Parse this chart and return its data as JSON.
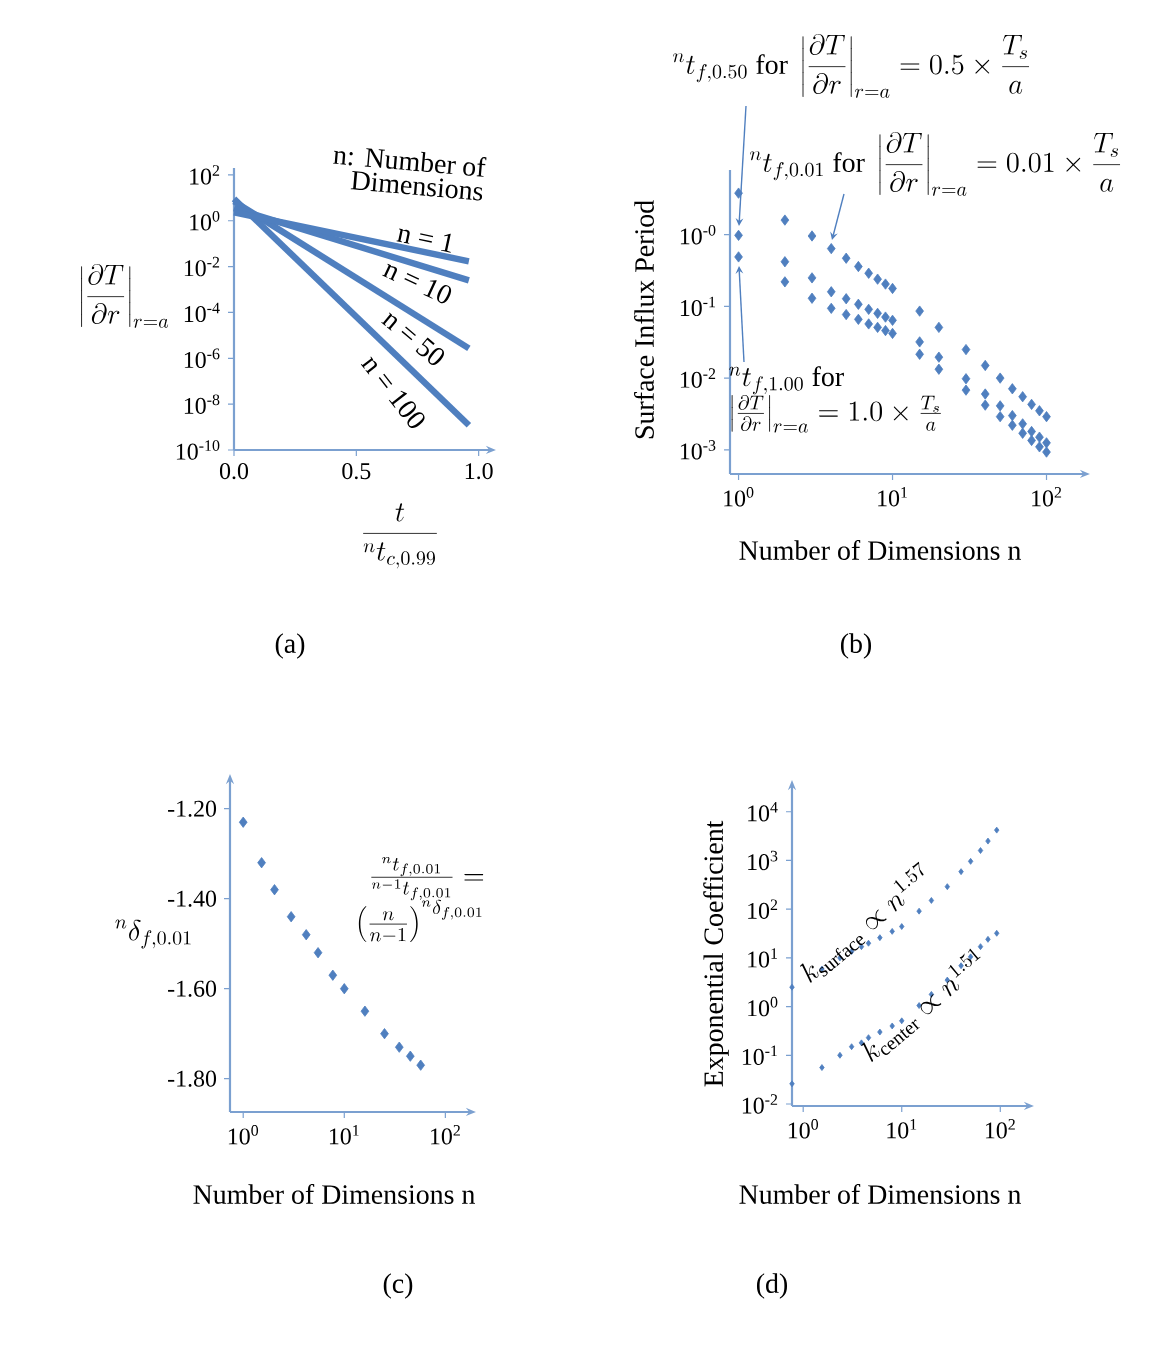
{
  "chart_data": [
    {
      "type": "line",
      "log": "y",
      "xlim": [
        0,
        1.03
      ],
      "ylim": [
        1e-10,
        200
      ],
      "xticks": [
        {
          "value": 0,
          "label": "0.0"
        },
        {
          "value": 0.5,
          "label": "0.5"
        },
        {
          "value": 1,
          "label": "1.0"
        }
      ],
      "yticks": [
        {
          "value": 100,
          "label": "10$^{2}$"
        },
        {
          "value": 1,
          "label": "10$^{0}$"
        },
        {
          "value": 0.01,
          "label": "10$^{-2}$"
        },
        {
          "value": 0.0001,
          "label": "10$^{-4}$"
        },
        {
          "value": 1e-06,
          "label": "10$^{-6}$"
        },
        {
          "value": 1e-08,
          "label": "10$^{-8}$"
        },
        {
          "value": 1e-10,
          "label": "10$^{-10}$"
        }
      ],
      "xlabel": "\\frac{t}{{}^{n}t_{c,0.99}}",
      "ylabel": "\\left|\\frac{\\partial T}{\\partial r}\\right|_{r=a}",
      "annotations": [
        "n: Number of Dimensions",
        "(a)"
      ],
      "x": [
        0,
        0.96
      ],
      "series": [
        {
          "name": "n = 1",
          "color": "#4f7fbf",
          "values": [
            2.3,
            0.017
          ]
        },
        {
          "name": "n = 10",
          "color": "#4f7fbf",
          "values": [
            3.5,
            0.0025
          ]
        },
        {
          "name": "n = 50",
          "color": "#4f7fbf",
          "values": [
            7,
            2.7e-06
          ]
        },
        {
          "name": "n = 100",
          "color": "#4f7fbf",
          "values": [
            9,
            1.2e-09
          ]
        }
      ]
    },
    {
      "type": "scatter",
      "log": "xy",
      "marker": "diamond",
      "xlim": [
        0.88,
        165
      ],
      "ylim": [
        0.00046,
        8
      ],
      "xticks": [
        {
          "value": 1,
          "label": "10$^{0}$"
        },
        {
          "value": 10,
          "label": "10$^{1}$"
        },
        {
          "value": 100,
          "label": "10$^{2}$"
        }
      ],
      "yticks": [
        {
          "value": 1,
          "label": "10$^{-0}$"
        },
        {
          "value": 0.1,
          "label": "10$^{-1}$"
        },
        {
          "value": 0.01,
          "label": "10$^{-2}$"
        },
        {
          "value": 0.001,
          "label": "10$^{-3}$"
        }
      ],
      "xlabel": "Number of Dimensions n",
      "ylabel": "Surface Influx Period",
      "annotations": [
        "{}^{n}t_{f,0.50}\\ \\mathrm{for}\\ \\left|\\frac{\\partial T}{\\partial r}\\right|_{r=a}=0.5\\times\\frac{T_s}{a}",
        "{}^{n}t_{f,0.01}\\ \\mathrm{for}\\ \\left|\\frac{\\partial T}{\\partial r}\\right|_{r=a}=0.01\\times\\frac{T_s}{a}",
        "\\begin{array}{l}{}^{n}t_{f,1.00}\\ \\mathrm{for}\\\\ \\left|\\frac{\\partial T}{\\partial r}\\right|_{r=a}=1.0\\times\\frac{T_s}{a}\\end{array}",
        "(b)"
      ],
      "x": [
        1,
        2,
        3,
        4,
        5,
        6,
        7,
        8,
        9,
        10,
        15,
        20,
        30,
        40,
        50,
        60,
        70,
        80,
        90,
        100
      ],
      "series": [
        {
          "color": "#4f7fbf",
          "values": [
            3.8,
            1.6,
            0.96,
            0.64,
            0.47,
            0.36,
            0.29,
            0.24,
            0.205,
            0.178,
            0.086,
            0.051,
            0.025,
            0.015,
            0.01,
            0.0071,
            0.0055,
            0.0043,
            0.0035,
            0.0029
          ]
        },
        {
          "color": "#4f7fbf",
          "values": [
            0.98,
            0.42,
            0.25,
            0.16,
            0.128,
            0.107,
            0.091,
            0.08,
            0.071,
            0.064,
            0.032,
            0.0196,
            0.0098,
            0.006,
            0.0041,
            0.003,
            0.0023,
            0.0018,
            0.0015,
            0.00125
          ]
        },
        {
          "color": "#4f7fbf",
          "values": [
            0.49,
            0.22,
            0.13,
            0.094,
            0.077,
            0.066,
            0.057,
            0.051,
            0.046,
            0.042,
            0.0215,
            0.0133,
            0.0068,
            0.0042,
            0.0029,
            0.0022,
            0.0017,
            0.00135,
            0.0011,
            0.00093
          ]
        }
      ]
    },
    {
      "type": "scatter",
      "log": "x",
      "marker": "diamond",
      "xlim": [
        0.74,
        160
      ],
      "ylim": [
        -1.874,
        -1.145
      ],
      "xticks": [
        {
          "value": 1,
          "label": "10$^{0}$"
        },
        {
          "value": 10,
          "label": "10$^{1}$"
        },
        {
          "value": 100,
          "label": "10$^{2}$"
        }
      ],
      "yticks": [
        {
          "value": -1.2,
          "label": "-1.20"
        },
        {
          "value": -1.4,
          "label": "-1.40"
        },
        {
          "value": -1.6,
          "label": "-1.60"
        },
        {
          "value": -1.8,
          "label": "-1.80"
        }
      ],
      "xlabel": "Number of Dimensions n",
      "ylabel": "{}^{n}\\delta_{f,0.01}",
      "annotations": [
        "\\begin{array}{r}\\frac{{}^{n}t_{f,0.01}}{{}^{n-1}t_{f,0.01}}=\\\\ \\left(\\frac{n}{n-1}\\right)^{{}^{n}\\delta_{f,0.01}}\\end{array}",
        "(c)"
      ],
      "x": [
        1,
        1.52,
        2.04,
        2.98,
        4.2,
        5.5,
        7.7,
        10,
        16,
        25,
        35,
        45,
        57
      ],
      "series": [
        {
          "color": "#4f7fbf",
          "values": [
            -1.23,
            -1.32,
            -1.38,
            -1.44,
            -1.48,
            -1.52,
            -1.57,
            -1.6,
            -1.65,
            -1.7,
            -1.73,
            -1.75,
            -1.77
          ]
        }
      ]
    },
    {
      "type": "scatter",
      "log": "xy",
      "marker": "diamond",
      "xlim": [
        0.77,
        174
      ],
      "ylim": [
        0.0091,
        28000
      ],
      "xticks": [
        {
          "value": 1,
          "label": "10$^{0}$"
        },
        {
          "value": 10,
          "label": "10$^{1}$"
        },
        {
          "value": 100,
          "label": "10$^{2}$"
        }
      ],
      "yticks": [
        {
          "value": 0.01,
          "label": "10$^{-2}$"
        },
        {
          "value": 0.1,
          "label": "10$^{-1}$"
        },
        {
          "value": 1,
          "label": "10$^{0}$"
        },
        {
          "value": 10,
          "label": "10$^{1}$"
        },
        {
          "value": 100,
          "label": "10$^{2}$"
        },
        {
          "value": 1000,
          "label": "10$^{3}$"
        },
        {
          "value": 10000,
          "label": "10$^{4}$"
        }
      ],
      "xlabel": "Number of Dimensions n",
      "ylabel": "Exponential Coefficient",
      "annotations": [
        "(d)"
      ],
      "x": [
        0.77,
        1.55,
        2.36,
        3.1,
        3.9,
        4.6,
        6,
        8,
        10,
        15,
        20,
        29,
        40,
        50,
        63,
        75,
        92
      ],
      "series": [
        {
          "name": "k_{\\mathrm{surface}}\\propto n^{1.57}",
          "color": "#4f7fbf",
          "values": [
            2.5,
            5.9,
            10,
            13.5,
            17,
            20,
            26,
            35,
            44,
            91,
            151,
            290,
            590,
            960,
            1600,
            2500,
            4200
          ]
        },
        {
          "name": "k_{\\mathrm{center}}\\propto n^{1.51}",
          "color": "#4f7fbf",
          "values": [
            0.026,
            0.056,
            0.1,
            0.15,
            0.18,
            0.23,
            0.3,
            0.4,
            0.51,
            1.05,
            1.78,
            3.5,
            6.9,
            10.5,
            17,
            24,
            32
          ]
        }
      ]
    }
  ]
}
